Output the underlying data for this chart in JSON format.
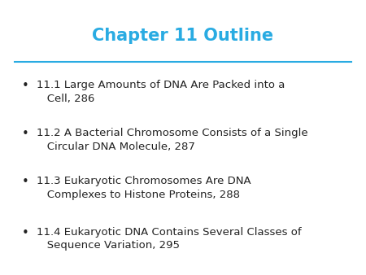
{
  "title": "Chapter 11 Outline",
  "title_color": "#29ABE2",
  "title_fontsize": 15,
  "title_fontweight": "bold",
  "line_color": "#29ABE2",
  "background_color": "#ffffff",
  "bullet_color": "#222222",
  "bullet_fontsize": 9.5,
  "bullets": [
    "11.1 Large Amounts of DNA Are Packed into a\nCell, 286",
    "11.2 A Bacterial Chromosome Consists of a Single\nCircular DNA Molecule, 287",
    "11.3 Eukaryotic Chromosomes Are DNA\nComplexes to Histone Proteins, 288",
    "11.4 Eukaryotic DNA Contains Several Classes of\nSequence Variation, 295"
  ],
  "font_family": "DejaVu Sans"
}
